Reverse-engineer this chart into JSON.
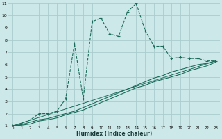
{
  "xlabel": "Humidex (Indice chaleur)",
  "background_color": "#cce8e8",
  "grid_color": "#aacccc",
  "line_color": "#1a6b5a",
  "xlim": [
    -0.5,
    23.5
  ],
  "ylim": [
    1,
    11
  ],
  "xticks": [
    0,
    1,
    2,
    3,
    4,
    5,
    6,
    7,
    8,
    9,
    10,
    11,
    12,
    13,
    14,
    15,
    16,
    17,
    18,
    19,
    20,
    21,
    22,
    23
  ],
  "yticks": [
    1,
    2,
    3,
    4,
    5,
    6,
    7,
    8,
    9,
    10,
    11
  ],
  "series1_x": [
    0,
    1,
    2,
    3,
    4,
    5,
    6,
    7,
    8,
    9,
    10,
    11,
    12,
    13,
    14,
    15,
    16,
    17,
    18,
    19,
    20,
    21,
    22,
    23
  ],
  "series1_y": [
    1,
    1.2,
    1.5,
    2.0,
    2.0,
    2.2,
    3.2,
    7.7,
    3.2,
    9.5,
    9.8,
    8.5,
    8.3,
    10.3,
    11.0,
    8.8,
    7.5,
    7.5,
    6.5,
    6.6,
    6.5,
    6.5,
    6.3,
    6.3
  ],
  "series2_x": [
    0,
    1,
    2,
    3,
    4,
    5,
    6,
    7,
    8,
    9,
    10,
    11,
    12,
    13,
    14,
    15,
    16,
    17,
    18,
    19,
    20,
    21,
    22,
    23
  ],
  "series2_y": [
    1,
    1.1,
    1.3,
    1.5,
    1.6,
    1.8,
    2.0,
    2.2,
    2.5,
    2.8,
    3.1,
    3.4,
    3.7,
    4.0,
    4.3,
    4.6,
    4.9,
    5.1,
    5.4,
    5.6,
    5.8,
    6.0,
    6.1,
    6.3
  ],
  "series3_x": [
    0,
    1,
    2,
    3,
    4,
    5,
    6,
    7,
    8,
    9,
    10,
    11,
    12,
    13,
    14,
    15,
    16,
    17,
    18,
    19,
    20,
    21,
    22,
    23
  ],
  "series3_y": [
    1,
    1.05,
    1.15,
    1.4,
    1.5,
    1.65,
    1.9,
    2.1,
    2.3,
    2.6,
    2.9,
    3.2,
    3.5,
    3.8,
    4.1,
    4.3,
    4.6,
    4.8,
    5.0,
    5.2,
    5.5,
    5.7,
    5.9,
    6.2
  ],
  "series4_x": [
    0,
    23
  ],
  "series4_y": [
    1,
    6.3
  ]
}
